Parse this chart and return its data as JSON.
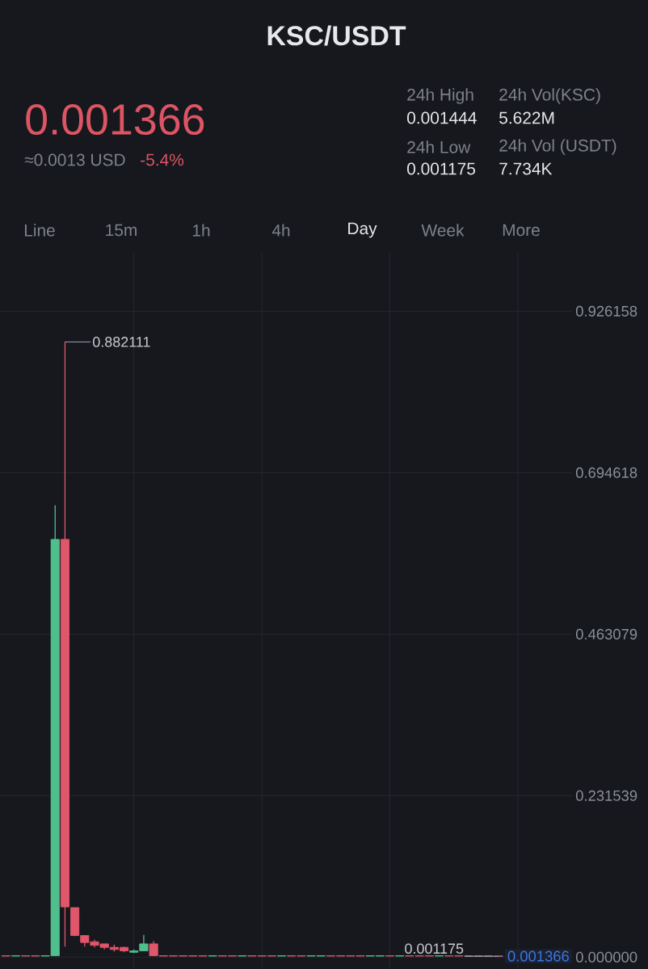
{
  "chart_data": {
    "type": "candlestick",
    "title": "KSC/USDT",
    "categories": [
      null,
      null,
      null,
      null,
      null,
      null,
      null,
      null,
      null,
      null,
      null,
      null,
      null,
      null,
      null,
      null,
      null,
      null,
      null,
      null,
      null,
      null,
      null,
      null,
      null,
      null,
      null,
      null,
      null,
      null,
      null,
      null,
      null,
      null,
      null,
      null,
      null,
      null,
      null,
      null,
      null,
      null,
      null,
      null,
      null,
      null,
      null,
      null,
      null,
      null,
      null
    ],
    "ohlc": [
      [
        0.002,
        0.002,
        0.0015,
        0.0015
      ],
      [
        0.0015,
        0.002,
        0.0015,
        0.002
      ],
      [
        0.002,
        0.002,
        0.0015,
        0.0015
      ],
      [
        0.002,
        0.002,
        0.0015,
        0.0015
      ],
      [
        0.0015,
        0.002,
        0.0015,
        0.002
      ],
      [
        0.002,
        0.648,
        0.0015,
        0.599
      ],
      [
        0.599,
        0.882111,
        0.015,
        0.072
      ],
      [
        0.071,
        0.071,
        0.03,
        0.031
      ],
      [
        0.031,
        0.031,
        0.015,
        0.021
      ],
      [
        0.022,
        0.025,
        0.014,
        0.017
      ],
      [
        0.019,
        0.019,
        0.011,
        0.014
      ],
      [
        0.014,
        0.018,
        0.008,
        0.011
      ],
      [
        0.014,
        0.015,
        0.007,
        0.009
      ],
      [
        0.007,
        0.011,
        0.006,
        0.009
      ],
      [
        0.009,
        0.032,
        0.009,
        0.019
      ],
      [
        0.019,
        0.023,
        0.0015,
        0.002
      ],
      [
        0.002,
        0.002,
        0.0015,
        0.0015
      ],
      [
        0.002,
        0.002,
        0.0015,
        0.0015
      ],
      [
        0.002,
        0.002,
        0.0015,
        0.0015
      ],
      [
        0.002,
        0.002,
        0.0015,
        0.0015
      ],
      [
        0.002,
        0.002,
        0.0015,
        0.0015
      ],
      [
        0.0015,
        0.002,
        0.0015,
        0.002
      ],
      [
        0.002,
        0.002,
        0.0015,
        0.0015
      ],
      [
        0.002,
        0.002,
        0.0015,
        0.0015
      ],
      [
        0.0015,
        0.002,
        0.0015,
        0.002
      ],
      [
        0.002,
        0.002,
        0.0015,
        0.0015
      ],
      [
        0.002,
        0.002,
        0.0015,
        0.0015
      ],
      [
        0.002,
        0.002,
        0.0015,
        0.0015
      ],
      [
        0.0015,
        0.002,
        0.0015,
        0.002
      ],
      [
        0.002,
        0.002,
        0.0015,
        0.0015
      ],
      [
        0.002,
        0.002,
        0.0015,
        0.0015
      ],
      [
        0.0015,
        0.002,
        0.0015,
        0.002
      ],
      [
        0.0015,
        0.002,
        0.0015,
        0.002
      ],
      [
        0.002,
        0.002,
        0.0015,
        0.0015
      ],
      [
        0.002,
        0.002,
        0.0015,
        0.0015
      ],
      [
        0.002,
        0.002,
        0.0015,
        0.0015
      ],
      [
        0.002,
        0.002,
        0.0015,
        0.0015
      ],
      [
        0.0015,
        0.002,
        0.0015,
        0.002
      ],
      [
        0.0015,
        0.002,
        0.0015,
        0.002
      ],
      [
        0.002,
        0.002,
        0.0015,
        0.0015
      ],
      [
        0.0015,
        0.002,
        0.0015,
        0.002
      ],
      [
        0.002,
        0.002,
        0.0015,
        0.0015
      ],
      [
        0.002,
        0.002,
        0.0015,
        0.0015
      ],
      [
        0.002,
        0.002,
        0.0015,
        0.0015
      ],
      [
        0.0015,
        0.002,
        0.0015,
        0.002
      ],
      [
        0.002,
        0.002,
        0.0015,
        0.0015
      ],
      [
        0.002,
        0.002,
        0.0015,
        0.0015
      ],
      [
        0.002,
        0.002,
        0.0015,
        0.0015
      ],
      [
        0.002,
        0.002,
        0.0015,
        0.0015
      ],
      [
        0.002,
        0.002,
        0.0015,
        0.0015
      ],
      [
        0.001444,
        0.001444,
        0.001175,
        0.001366
      ]
    ],
    "colors": [
      "#e0566b",
      "#4fc08d",
      "#e0566b",
      "#e0566b",
      "#4fc08d",
      "#4fc08d",
      "#e0566b",
      "#e0566b",
      "#e0566b",
      "#e0566b",
      "#e0566b",
      "#e0566b",
      "#e0566b",
      "#4fc08d",
      "#4fc08d",
      "#e0566b",
      "#e0566b",
      "#e0566b",
      "#e0566b",
      "#e0566b",
      "#e0566b",
      "#4fc08d",
      "#e0566b",
      "#e0566b",
      "#4fc08d",
      "#e0566b",
      "#e0566b",
      "#e0566b",
      "#4fc08d",
      "#e0566b",
      "#e0566b",
      "#4fc08d",
      "#4fc08d",
      "#e0566b",
      "#e0566b",
      "#e0566b",
      "#e0566b",
      "#4fc08d",
      "#4fc08d",
      "#e0566b",
      "#4fc08d",
      "#e0566b",
      "#e0566b",
      "#e0566b",
      "#4fc08d",
      "#e0566b",
      "#e0566b",
      "#e0566b",
      "#e0566b",
      "#e0566b",
      "#e0566b"
    ],
    "ylim": [
      -0.017,
      1.01
    ],
    "yticks": [
      {
        "value": 0,
        "label": "0.000000"
      },
      0.231539,
      0.463079,
      0.694618,
      0.926158
    ],
    "grid": true,
    "tick_labels": "y",
    "ref_lines": [
      {
        "axis": "y",
        "value": 0.001366,
        "label": "0.001366",
        "color": "#3b74e0",
        "line_style": "dashed"
      }
    ],
    "annotations": [
      "0.001366",
      "≈0.0013 USD",
      "-5.4%",
      "24h High",
      "0.001444",
      "24h Vol(KSC)",
      "5.622M",
      "24h Low",
      "0.001175",
      "24h Vol (USDT)",
      "7.734K",
      "Line",
      "15m",
      "1h",
      "4h",
      "Day",
      "Week",
      "More",
      "0.882111",
      {
        "text": "0.001175",
        "y": 0.001175
      }
    ]
  }
}
